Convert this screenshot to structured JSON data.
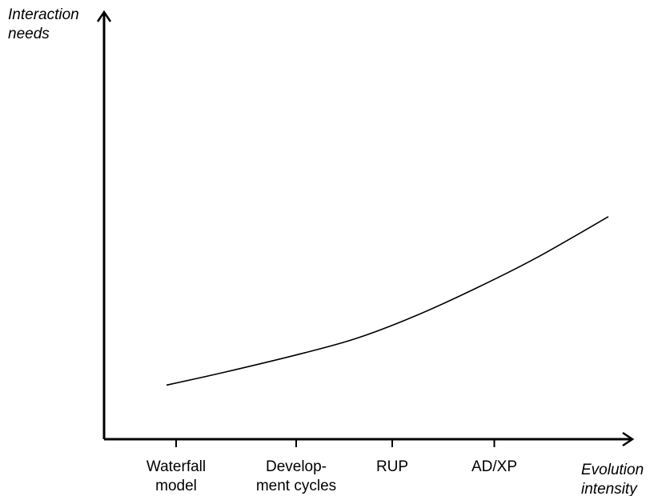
{
  "chart_data": {
    "type": "line",
    "ylabel": [
      "Interaction",
      "needs"
    ],
    "xlabel": [
      "Evolution",
      "intensity"
    ],
    "categories": [
      {
        "lines": [
          "Waterfall",
          "model"
        ],
        "x": 1
      },
      {
        "lines": [
          "Develop-",
          "ment cycles"
        ],
        "x": 2
      },
      {
        "lines": [
          "RUP"
        ],
        "x": 2.8
      },
      {
        "lines": [
          "AD/XP"
        ],
        "x": 3.65
      }
    ],
    "xlim": [
      0.4,
      4.8
    ],
    "ylim": [
      0,
      10
    ],
    "series": [
      {
        "x": [
          0.92,
          1.4,
          2.0,
          2.5,
          3.0,
          3.5,
          4.0,
          4.6
        ],
        "y": [
          2.95,
          3.65,
          4.6,
          5.5,
          6.75,
          8.25,
          9.9,
          12.15
        ]
      }
    ],
    "grid": false,
    "legend": "none"
  }
}
